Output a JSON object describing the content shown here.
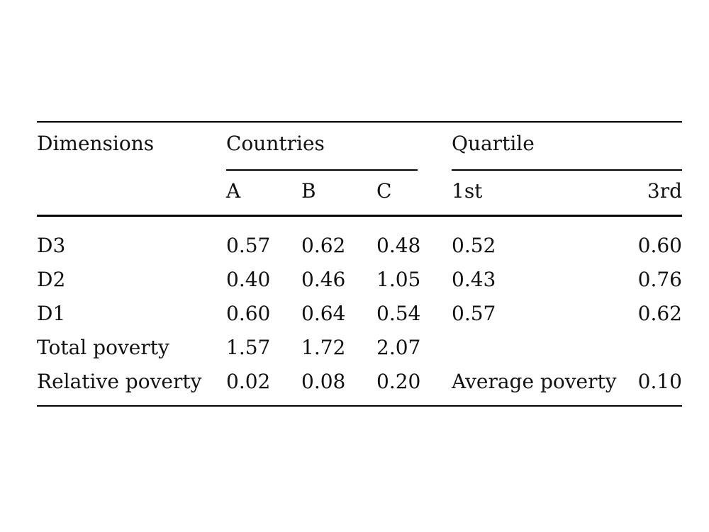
{
  "table": {
    "header": {
      "dimensions": "Dimensions",
      "countries": "Countries",
      "quartile": "Quartile",
      "col_a": "A",
      "col_b": "B",
      "col_c": "C",
      "col_q1": "1st",
      "col_q3": "3rd"
    },
    "rows": [
      {
        "label": "D3",
        "a": "0.57",
        "b": "0.62",
        "c": "0.48",
        "q1": "0.52",
        "q3": "0.60"
      },
      {
        "label": "D2",
        "a": "0.40",
        "b": "0.46",
        "c": "1.05",
        "q1": "0.43",
        "q3": "0.76"
      },
      {
        "label": "D1",
        "a": "0.60",
        "b": "0.64",
        "c": "0.54",
        "q1": "0.57",
        "q3": "0.62"
      },
      {
        "label": "Total poverty",
        "a": "1.57",
        "b": "1.72",
        "c": "2.07",
        "q1": "",
        "q3": ""
      },
      {
        "label": "Relative poverty",
        "a": "0.02",
        "b": "0.08",
        "c": "0.20",
        "q1": "Average poverty",
        "q3": "0.10"
      }
    ]
  }
}
